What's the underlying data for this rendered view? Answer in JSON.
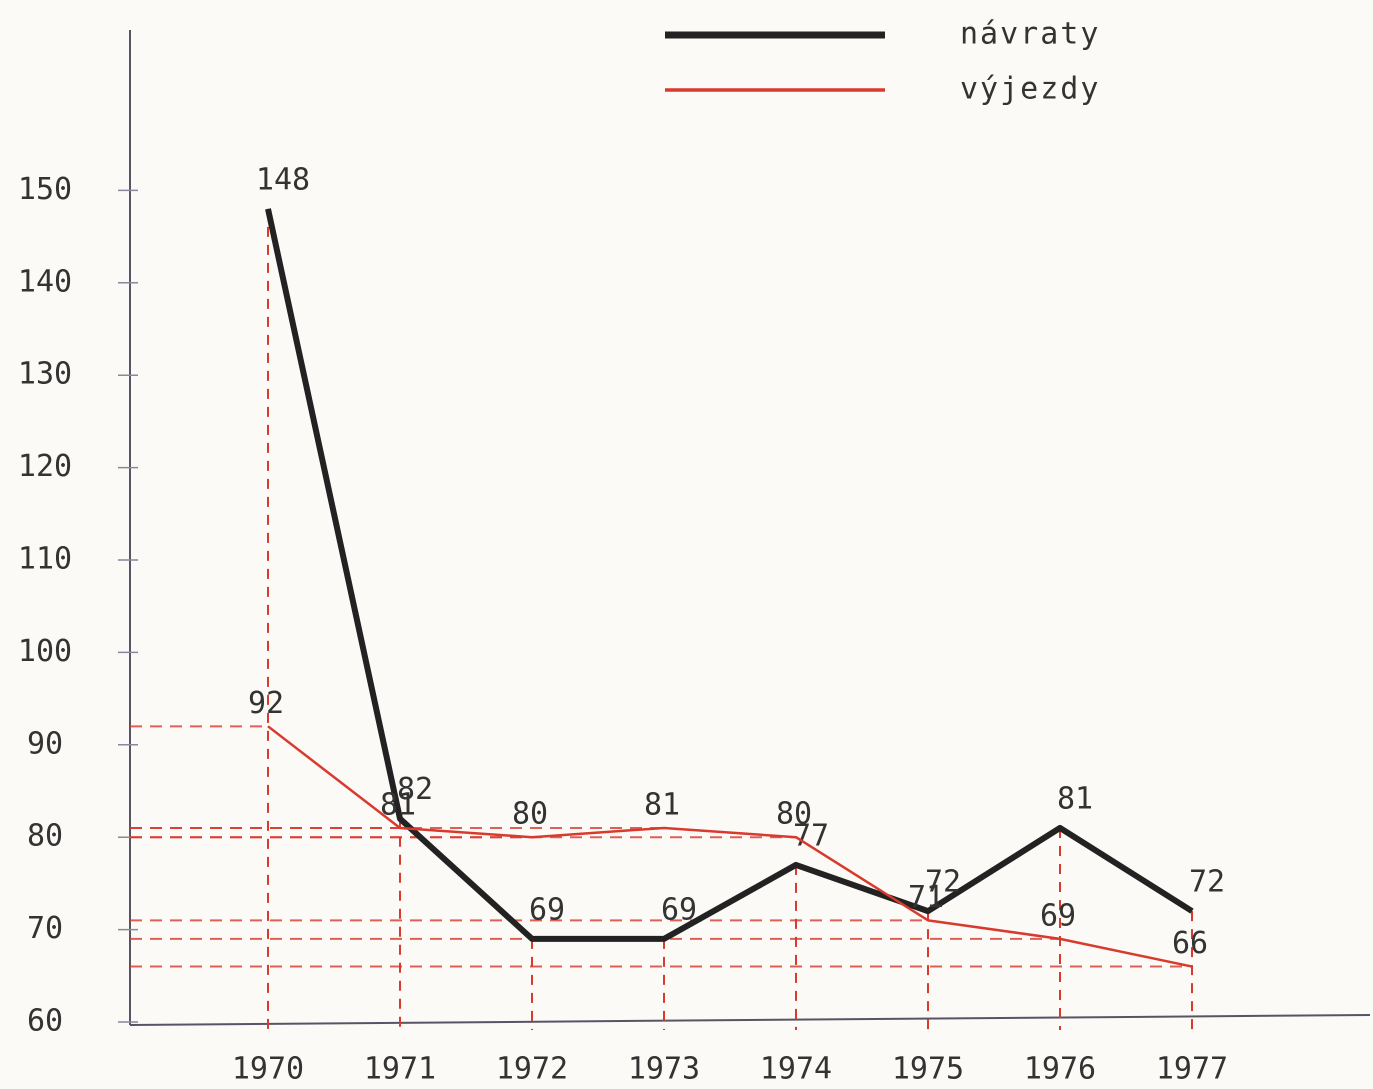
{
  "chart_data": {
    "type": "line",
    "categories": [
      "1970",
      "1971",
      "1972",
      "1973",
      "1974",
      "1975",
      "1976",
      "1977"
    ],
    "series": [
      {
        "name": "návraty",
        "color": "#222222",
        "values": [
          148,
          82,
          69,
          69,
          77,
          72,
          81,
          72
        ]
      },
      {
        "name": "výjezdy",
        "color": "#d83a2e",
        "values": [
          92,
          81,
          80,
          81,
          80,
          71,
          69,
          66
        ]
      }
    ],
    "ylim": [
      60,
      155
    ],
    "yticks": [
      60,
      70,
      80,
      90,
      100,
      110,
      120,
      130,
      140,
      150
    ],
    "grid": true,
    "legend": "top"
  }
}
